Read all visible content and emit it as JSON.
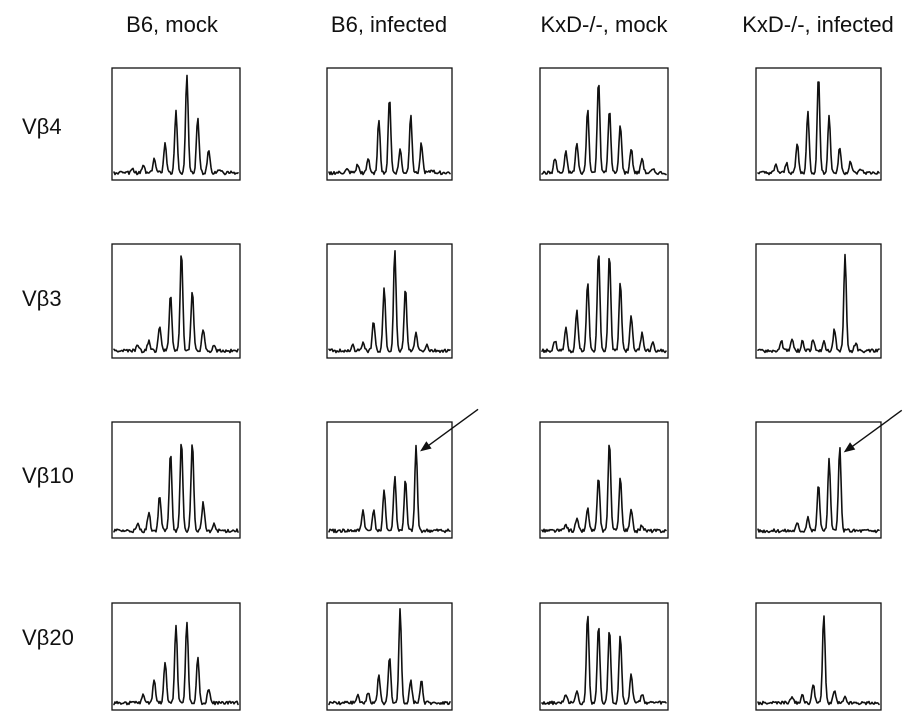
{
  "chart_data": {
    "type": "line",
    "columns": [
      "B6, mock",
      "B6, infected",
      "KxD-/-, mock",
      "KxD-/-, infected"
    ],
    "rows": [
      "Vβ4",
      "Vβ3",
      "Vβ10",
      "Vβ20"
    ],
    "ylim": [
      0,
      1
    ],
    "peaks": [
      [
        [
          0.03,
          0.08,
          0.15,
          0.32,
          0.62,
          1.0,
          0.58,
          0.22,
          0.04
        ],
        [
          0.03,
          0.08,
          0.15,
          0.55,
          0.78,
          0.24,
          0.6,
          0.3,
          0.03
        ],
        [
          0.15,
          0.21,
          0.3,
          0.65,
          0.96,
          0.65,
          0.5,
          0.25,
          0.15,
          0.03
        ],
        [
          0.08,
          0.1,
          0.3,
          0.62,
          1.0,
          0.58,
          0.26,
          0.12,
          0.04
        ]
      ],
      [
        [
          0.06,
          0.1,
          0.26,
          0.56,
          1.0,
          0.6,
          0.22,
          0.05
        ],
        [
          0.06,
          0.08,
          0.3,
          0.62,
          1.0,
          0.62,
          0.18,
          0.06
        ],
        [
          0.1,
          0.22,
          0.4,
          0.68,
          1.0,
          0.98,
          0.68,
          0.36,
          0.18,
          0.08
        ],
        [
          0.1,
          0.12,
          0.1,
          0.12,
          0.1,
          0.22,
          0.95,
          0.08
        ]
      ],
      [
        [
          0.06,
          0.18,
          0.35,
          0.78,
          0.88,
          0.88,
          0.28,
          0.06
        ],
        [
          0.2,
          0.2,
          0.4,
          0.53,
          0.5,
          0.83
        ],
        [
          0.06,
          0.12,
          0.22,
          0.53,
          0.88,
          0.53,
          0.2,
          0.06
        ],
        [
          0.07,
          0.14,
          0.45,
          0.7,
          0.82
        ]
      ],
      [
        [
          0.08,
          0.25,
          0.45,
          0.83,
          0.87,
          0.5,
          0.15
        ],
        [
          0.08,
          0.12,
          0.3,
          0.5,
          1.0,
          0.25,
          0.25
        ],
        [
          0.1,
          0.14,
          0.95,
          0.85,
          0.8,
          0.73,
          0.32,
          0.1
        ],
        [
          0.08,
          0.08,
          0.2,
          0.95,
          0.14,
          0.06
        ]
      ]
    ],
    "annotations": [
      {
        "type": "arrow",
        "row": "Vβ10",
        "column": "B6, infected"
      },
      {
        "type": "arrow",
        "row": "Vβ10",
        "column": "KxD-/-, infected"
      }
    ]
  }
}
